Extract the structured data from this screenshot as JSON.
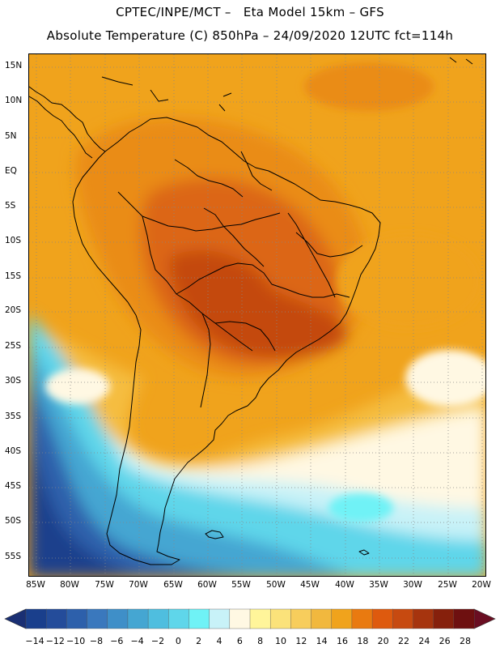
{
  "header": {
    "title_line1": "CPTEC/INPE/MCT –   Eta Model 15km – GFS",
    "title_line2": "Absolute Temperature (C) 850hPa – 24/09/2020 12UTC fct=114h"
  },
  "map": {
    "lat_labels": [
      "15N",
      "10N",
      "5N",
      "EQ",
      "5S",
      "10S",
      "15S",
      "20S",
      "25S",
      "30S",
      "35S",
      "40S",
      "45S",
      "50S",
      "55S"
    ],
    "lon_labels": [
      "85W",
      "80W",
      "75W",
      "70W",
      "65W",
      "60W",
      "55W",
      "50W",
      "45W",
      "40W",
      "35W",
      "30W",
      "25W",
      "20W"
    ]
  },
  "colorbar": {
    "labels": [
      "-14",
      "-12",
      "-10",
      "-8",
      "-6",
      "-4",
      "-2",
      "0",
      "2",
      "4",
      "6",
      "8",
      "10",
      "12",
      "14",
      "16",
      "18",
      "20",
      "22",
      "24",
      "26",
      "28"
    ],
    "colors": [
      "#1a3f8c",
      "#244c9a",
      "#2d60ab",
      "#3a78bd",
      "#3f8fc8",
      "#45a6d2",
      "#4fbedf",
      "#5fd6ea",
      "#6ff2f6",
      "#c8f2f8",
      "#fff8e3",
      "#fff59a",
      "#fbe27a",
      "#f7cd5c",
      "#f1b83e",
      "#f0a31c",
      "#e97a10",
      "#de5a0e",
      "#c74a10",
      "#a6340e",
      "#86200c",
      "#6e1010"
    ],
    "left_arrow_color": "#1a2f73",
    "right_arrow_color": "#6a0e22"
  },
  "palette": {
    "warm_core": "#c44a10",
    "hot": "#de6a12",
    "orange": "#e98a18",
    "amber": "#f0a31c",
    "gold": "#f5bd40",
    "yellow": "#fbe27a",
    "cream": "#fff8e3",
    "pale_cyan": "#c8f2f8",
    "cyan": "#5fd6ea",
    "light_blue": "#45a6d2",
    "blue": "#2d60ab",
    "deep_blue": "#1a3f8c"
  }
}
